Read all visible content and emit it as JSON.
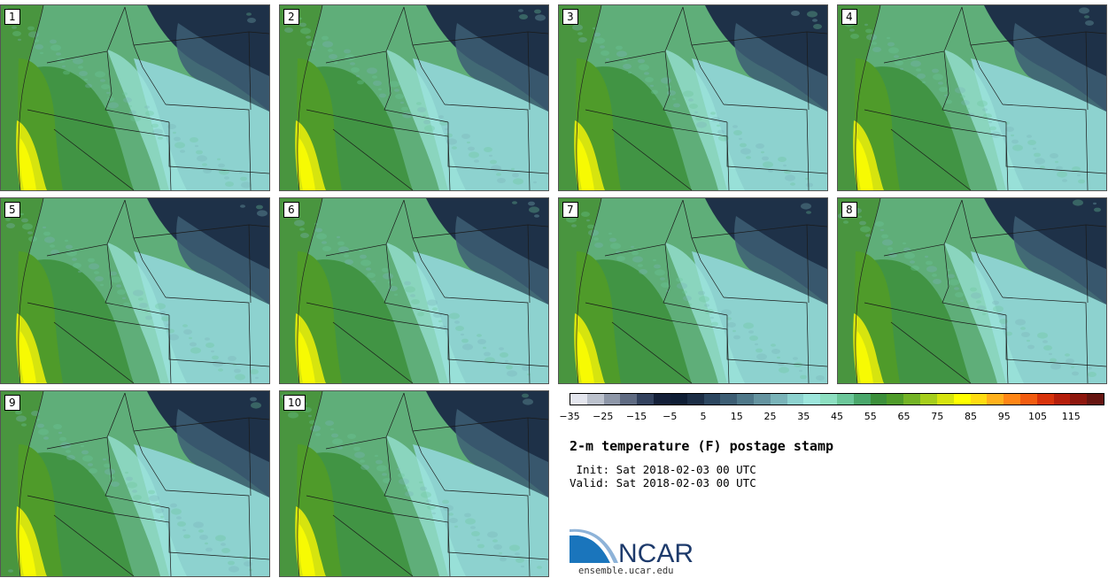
{
  "stamps": [
    {
      "label": "1"
    },
    {
      "label": "2"
    },
    {
      "label": "3"
    },
    {
      "label": "4"
    },
    {
      "label": "5"
    },
    {
      "label": "6"
    },
    {
      "label": "7"
    },
    {
      "label": "8"
    },
    {
      "label": "9"
    },
    {
      "label": "10"
    }
  ],
  "colorbar": {
    "colors": [
      "#e4e6ee",
      "#bcc2cd",
      "#8e97a8",
      "#5f6b82",
      "#33425e",
      "#142039",
      "#0f1e35",
      "#1c2e46",
      "#2c4760",
      "#3d5e74",
      "#4f7889",
      "#6594a0",
      "#7ab4b9",
      "#8dd2cf",
      "#9de6dc",
      "#8ddfc1",
      "#6cc79a",
      "#4aa76b",
      "#3c8f3b",
      "#4f9b2a",
      "#74b326",
      "#a6ce1c",
      "#d6e40f",
      "#ffff00",
      "#ffdc12",
      "#ffb11c",
      "#ff8616",
      "#f25c10",
      "#d8330b",
      "#b51e0b",
      "#8e170e",
      "#661511"
    ],
    "tick_labels": [
      "−35",
      "−25",
      "−15",
      "−5",
      "5",
      "15",
      "25",
      "35",
      "45",
      "55",
      "65",
      "75",
      "85",
      "95",
      "105",
      "115"
    ]
  },
  "title": "2-m temperature (F) postage stamp",
  "init_line": " Init: Sat 2018-02-03 00 UTC",
  "valid_line": "Valid: Sat 2018-02-03 00 UTC",
  "logo": {
    "text": "NCAR",
    "url": "ensemble.ucar.edu"
  }
}
